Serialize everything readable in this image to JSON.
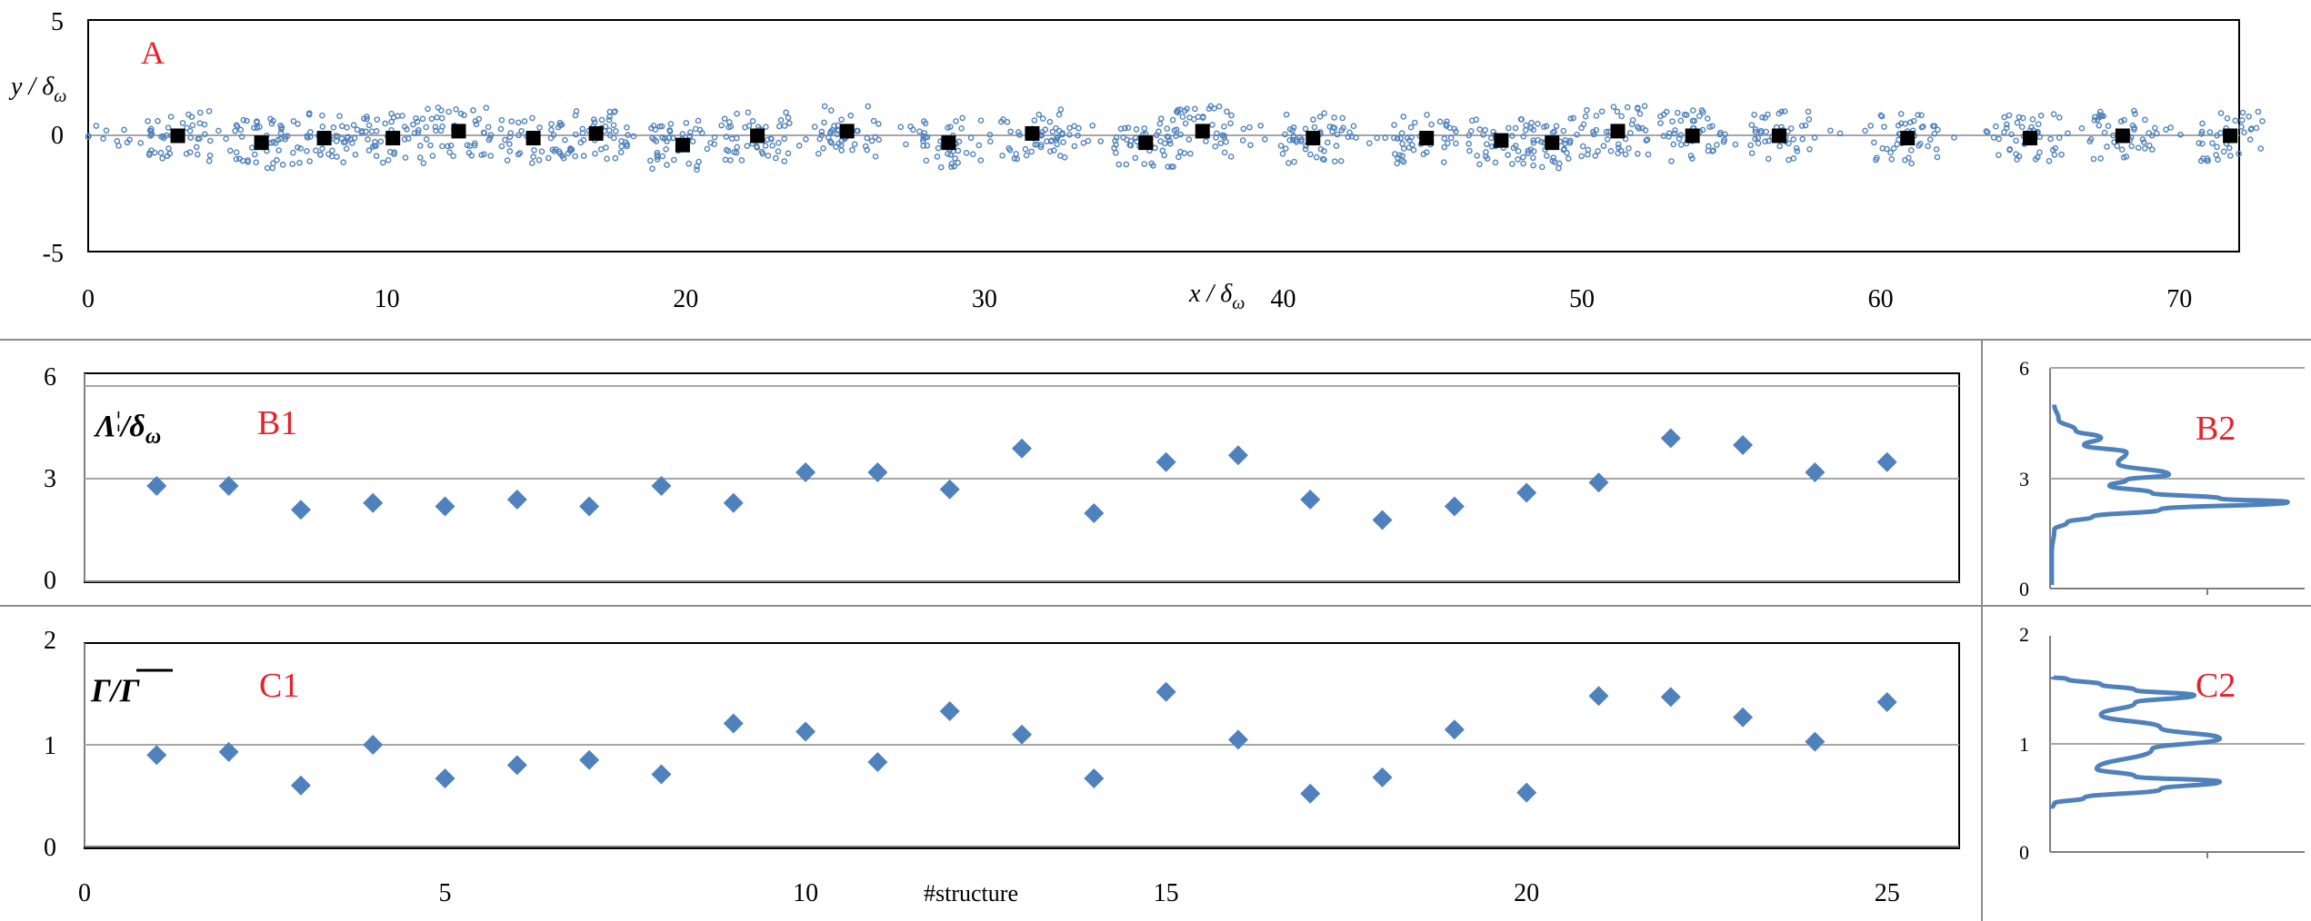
{
  "colors": {
    "marker_blue": "#4F81BD",
    "marker_black": "#000000",
    "label_red": "#E8202A",
    "gridline": "#A6A6A6",
    "axis": "#7F7F7F",
    "frame": "#000000"
  },
  "panel_A": {
    "label": "A",
    "ylabel_italic": "y / δ",
    "ylabel_sub": "ω",
    "xlabel_italic": "x / δ",
    "xlabel_sub": "ω",
    "xticks": [
      "0",
      "10",
      "20",
      "30",
      "40",
      "50",
      "60",
      "70"
    ],
    "yticks": [
      "5",
      "0",
      "-5"
    ]
  },
  "panel_B1": {
    "label": "B1",
    "ylabel_main": "Λ",
    "ylabel_sup": "¦",
    "ylabel_rest": "/δ",
    "ylabel_sub": "ω",
    "yticks": [
      "6",
      "3",
      "0"
    ]
  },
  "panel_B2": {
    "label": "B2",
    "yticks": [
      "6",
      "3",
      "0"
    ]
  },
  "panel_C1": {
    "label": "C1",
    "ylabel": "Γ/Γ",
    "yticks": [
      "2",
      "1",
      "0"
    ],
    "xticks": [
      "0",
      "5",
      "10",
      "15",
      "20",
      "25"
    ],
    "xlabel": "#structure"
  },
  "panel_C2": {
    "label": "C2",
    "yticks": [
      "2",
      "1",
      "0"
    ]
  },
  "chart_data": [
    {
      "type": "scatter",
      "panel": "A",
      "xlim": [
        0,
        72
      ],
      "ylim": [
        -5,
        5
      ],
      "grid": "y=0 line",
      "series": [
        {
          "marker": "black-square",
          "x": [
            3.0,
            5.8,
            7.9,
            10.2,
            12.4,
            14.9,
            17.0,
            19.9,
            22.4,
            25.4,
            28.8,
            31.6,
            35.4,
            37.3,
            41.0,
            44.8,
            47.3,
            49.0,
            51.2,
            53.7,
            56.6,
            60.9,
            65.0,
            68.1,
            71.7
          ],
          "y": [
            0.0,
            -0.3,
            -0.1,
            -0.1,
            0.2,
            -0.1,
            0.1,
            -0.4,
            0.0,
            0.2,
            -0.3,
            0.1,
            -0.3,
            0.2,
            -0.1,
            -0.1,
            -0.2,
            -0.3,
            0.2,
            0.0,
            0.0,
            -0.1,
            -0.1,
            0.0,
            0.0
          ]
        }
      ]
    },
    {
      "type": "scatter",
      "panel": "B1",
      "xlim": [
        0,
        26
      ],
      "ylim": [
        0,
        6
      ],
      "grid": "horizontal",
      "x": [
        1,
        2,
        3,
        4,
        5,
        6,
        7,
        8,
        9,
        10,
        11,
        12,
        13,
        14,
        15,
        16,
        17,
        18,
        19,
        20,
        21,
        22,
        23,
        24,
        25
      ],
      "y": [
        2.8,
        2.8,
        2.1,
        2.3,
        2.2,
        2.4,
        2.2,
        2.8,
        2.3,
        3.2,
        3.2,
        2.7,
        3.9,
        2.0,
        3.5,
        3.7,
        2.4,
        1.8,
        2.2,
        2.6,
        2.9,
        4.2,
        4.0,
        3.2,
        3.5
      ]
    },
    {
      "type": "line",
      "panel": "B2",
      "ylim": [
        0,
        6
      ],
      "grid": "horizontal",
      "x": [
        0.05,
        0.1,
        0.3,
        0.6,
        0.4,
        0.9,
        0.8,
        1.4,
        0.9,
        0.7,
        1.2,
        2.0,
        2.8,
        1.3,
        0.5,
        0.2,
        0.05,
        0.02,
        0.02
      ],
      "y": [
        5.0,
        4.6,
        4.3,
        4.1,
        3.9,
        3.7,
        3.4,
        3.1,
        2.95,
        2.8,
        2.6,
        2.45,
        2.35,
        2.15,
        1.95,
        1.8,
        1.6,
        1.0,
        0.1
      ]
    },
    {
      "type": "scatter",
      "panel": "C1",
      "xlim": [
        0,
        26
      ],
      "ylim": [
        0,
        2
      ],
      "grid": "horizontal",
      "xlabel": "#structure",
      "x": [
        1,
        2,
        3,
        4,
        5,
        6,
        7,
        8,
        9,
        10,
        11,
        12,
        13,
        14,
        15,
        16,
        17,
        18,
        19,
        20,
        21,
        22,
        23,
        24,
        25
      ],
      "y": [
        0.9,
        0.93,
        0.6,
        1.0,
        0.67,
        0.8,
        0.85,
        0.71,
        1.21,
        1.13,
        0.83,
        1.33,
        1.1,
        0.67,
        1.52,
        1.05,
        0.52,
        0.68,
        1.15,
        0.53,
        1.48,
        1.47,
        1.27,
        1.03,
        1.42
      ]
    },
    {
      "type": "line",
      "panel": "C2",
      "ylim": [
        0,
        2
      ],
      "grid": "horizontal",
      "x": [
        0.02,
        0.2,
        0.6,
        1.0,
        1.7,
        1.0,
        0.6,
        1.3,
        2.0,
        1.2,
        0.55,
        1.0,
        2.0,
        1.3,
        0.4,
        0.05,
        0.02
      ],
      "y": [
        1.62,
        1.6,
        1.55,
        1.5,
        1.45,
        1.38,
        1.27,
        1.15,
        1.05,
        0.95,
        0.77,
        0.7,
        0.65,
        0.58,
        0.5,
        0.45,
        0.4
      ]
    }
  ]
}
